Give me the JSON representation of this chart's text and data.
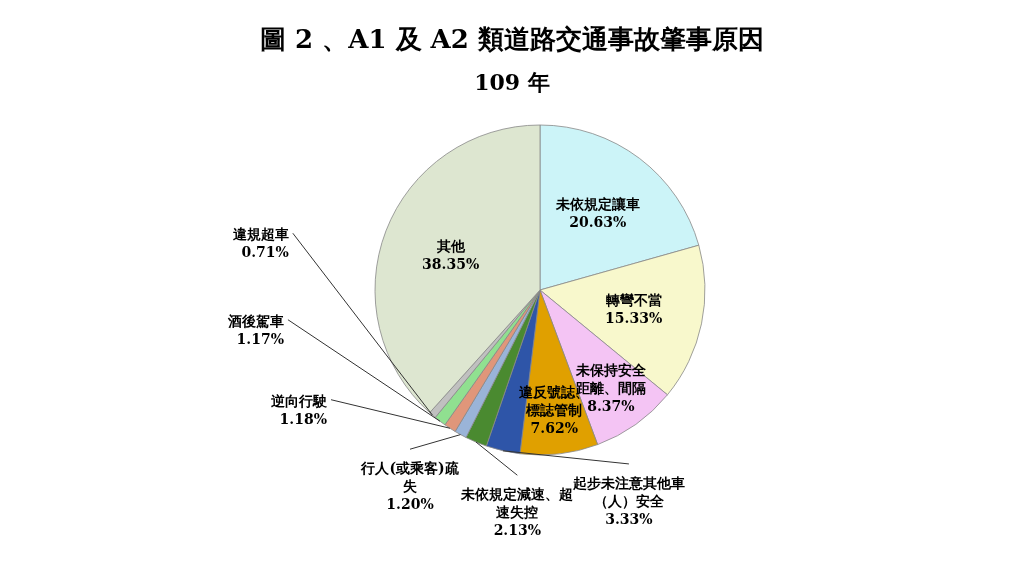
{
  "chart_data": {
    "type": "pie",
    "title": "圖 2 、A1 及 A2 類道路交通事故肇事原因",
    "subtitle": "109 年",
    "categories": [
      "未依規定讓車",
      "轉彎不當",
      "未保持安全距離、間隔",
      "違反號誌、標誌管制",
      "起步未注意其他車（人）安全",
      "未依規定減速、超速失控",
      "行人(或乘客)疏失",
      "逆向行駛",
      "酒後駕車",
      "違規超車",
      "其他"
    ],
    "values": [
      20.63,
      15.33,
      8.37,
      7.62,
      3.33,
      2.13,
      1.2,
      1.18,
      1.17,
      0.71,
      38.35
    ],
    "colors": [
      "#ccf4f8",
      "#f8f8cc",
      "#f4c4f4",
      "#e0a000",
      "#2e55a8",
      "#4a8a30",
      "#9ab4d8",
      "#e0967a",
      "#90e090",
      "#c0c0c0",
      "#dde6d0"
    ],
    "value_labels": [
      "20.63%",
      "15.33%",
      "8.37%",
      "7.62%",
      "3.33%",
      "2.13%",
      "1.20%",
      "1.18%",
      "1.17%",
      "0.71%",
      "38.35%"
    ]
  }
}
